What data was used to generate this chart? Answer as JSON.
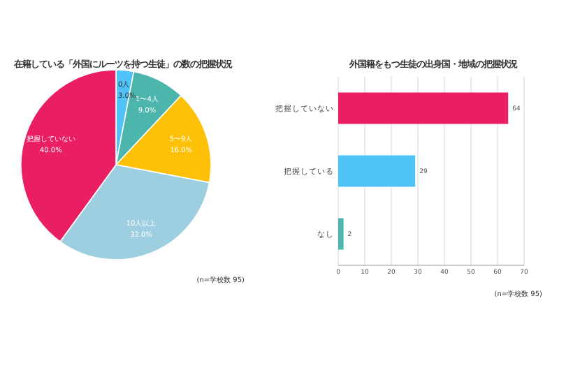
{
  "chart_data": [
    {
      "type": "pie",
      "title": "在籍している「外国にルーツを持つ生徒」の数の把握状況",
      "categories": [
        "0人",
        "1〜4人",
        "5〜9人",
        "10人以上",
        "把握していない"
      ],
      "values": [
        3.0,
        9.0,
        16.0,
        32.0,
        40.0
      ],
      "value_labels": [
        "3.0%",
        "9.0%",
        "16.0%",
        "32.0%",
        "40.0%"
      ],
      "colors": [
        "#4fc3f7",
        "#4db6ac",
        "#ffc107",
        "#9ecfe0",
        "#e91e63"
      ],
      "annotations": [
        "(n=学校数 95)"
      ]
    },
    {
      "type": "bar",
      "orientation": "horizontal",
      "title": "外国籍をもつ生徒の出身国・地域の把握状況",
      "categories": [
        "把握していない",
        "把握している",
        "なし"
      ],
      "values": [
        64,
        29,
        2
      ],
      "colors": [
        "#e91e63",
        "#4fc3f7",
        "#4db6ac"
      ],
      "data_labels": true,
      "xlim": [
        0,
        70
      ],
      "xticks": [
        0,
        10,
        20,
        30,
        40,
        50,
        60,
        70
      ],
      "grid": "x",
      "annotations": [
        "(n=学校数 95)"
      ]
    }
  ]
}
